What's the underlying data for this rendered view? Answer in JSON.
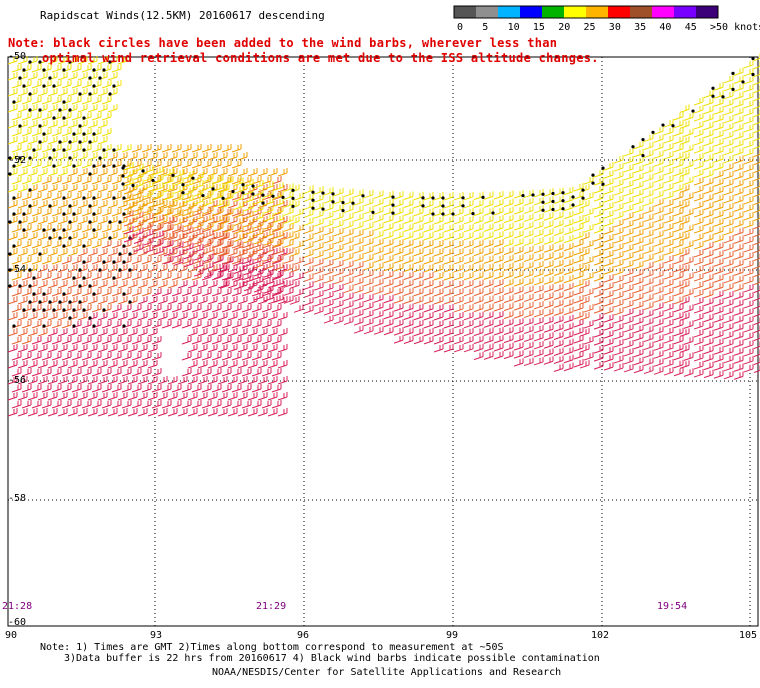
{
  "title": "Rapidscat Winds(12.5KM) 20160617 descending",
  "note_line1": "Note: black circles have been added to the wind barbs, wherever less than",
  "note_line2": "optimal wind retrieval conditions are met due to the ISS altitude changes.",
  "color_scale": {
    "labels": [
      "0",
      "5",
      "10",
      "15",
      "20",
      "25",
      "30",
      "35",
      "40",
      "45",
      ">50 knots"
    ],
    "colors": [
      "#555555",
      "#8f8f8f",
      "#00b4ff",
      "#0000ff",
      "#00b400",
      "#ffff00",
      "#ffb400",
      "#ff0000",
      "#a05028",
      "#ff00ff",
      "#7800ff",
      "#3c0078"
    ]
  },
  "lat_labels": [
    "-50",
    "-52",
    "-54",
    "-56",
    "-58",
    "-60"
  ],
  "lon_labels": [
    "90",
    "93",
    "96",
    "99",
    "102",
    "105"
  ],
  "time_labels": [
    "21:28",
    "21:29",
    "19:54"
  ],
  "footer": {
    "line1": "Note: 1) Times are GMT 2)Times along bottom correspond to measurement at ~50S",
    "line2": "3)Data buffer is 22 hrs from 20160617 4) Black wind barbs indicate possible contamination",
    "line3": "NOAA/NESDIS/Center for Satellite Applications and Research"
  }
}
